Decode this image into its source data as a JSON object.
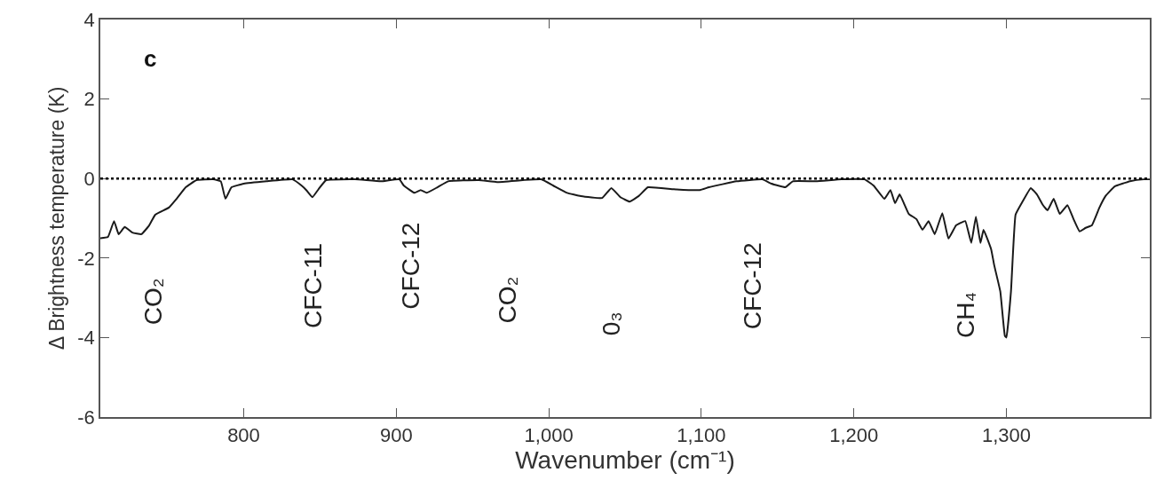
{
  "chart_data": {
    "type": "line",
    "xlabel": "Wavenumber (cm⁻¹)",
    "ylabel": "Δ Brightness temperature (K)",
    "x": [
      706,
      711,
      715,
      718,
      722,
      727,
      733,
      738,
      742,
      751,
      756,
      762,
      769,
      780,
      785,
      788,
      792,
      800,
      815,
      832,
      838,
      841,
      845,
      849,
      854,
      873,
      890,
      902,
      905,
      912,
      916,
      920,
      927,
      934,
      954,
      966,
      983,
      995,
      1003,
      1012,
      1021,
      1035,
      1041,
      1047,
      1053,
      1059,
      1065,
      1082,
      1099,
      1105,
      1123,
      1140,
      1146,
      1155,
      1160,
      1175,
      1192,
      1207,
      1213,
      1220,
      1224,
      1227,
      1230,
      1236,
      1241,
      1245,
      1249,
      1253,
      1258,
      1262,
      1267,
      1273,
      1277,
      1280,
      1283,
      1285,
      1290,
      1292,
      1296,
      1299,
      1300,
      1303,
      1306,
      1310,
      1316,
      1320,
      1324,
      1327,
      1331,
      1335,
      1340,
      1344,
      1348,
      1352,
      1356,
      1361,
      1365,
      1371,
      1381,
      1390,
      1394
    ],
    "series": [
      {
        "color": "#1a1a1a",
        "values": [
          -1.5,
          -1.47,
          -1.07,
          -1.4,
          -1.22,
          -1.36,
          -1.4,
          -1.18,
          -0.91,
          -0.73,
          -0.51,
          -0.22,
          -0.04,
          -0.02,
          -0.07,
          -0.51,
          -0.22,
          -0.13,
          -0.07,
          -0.02,
          -0.18,
          -0.29,
          -0.47,
          -0.27,
          -0.04,
          -0.02,
          -0.07,
          -0.02,
          -0.18,
          -0.36,
          -0.29,
          -0.36,
          -0.22,
          -0.07,
          -0.04,
          -0.09,
          -0.04,
          -0.02,
          -0.18,
          -0.36,
          -0.44,
          -0.49,
          -0.24,
          -0.47,
          -0.58,
          -0.44,
          -0.22,
          -0.27,
          -0.29,
          -0.22,
          -0.07,
          -0.02,
          -0.13,
          -0.22,
          -0.07,
          -0.07,
          -0.02,
          -0.02,
          -0.18,
          -0.51,
          -0.29,
          -0.62,
          -0.4,
          -0.89,
          -1.02,
          -1.29,
          -1.07,
          -1.4,
          -0.87,
          -1.51,
          -1.18,
          -1.07,
          -1.62,
          -0.96,
          -1.62,
          -1.29,
          -1.78,
          -2.18,
          -2.84,
          -3.96,
          -4.0,
          -2.84,
          -0.91,
          -0.62,
          -0.24,
          -0.4,
          -0.67,
          -0.8,
          -0.51,
          -0.89,
          -0.67,
          -1.02,
          -1.33,
          -1.24,
          -1.18,
          -0.73,
          -0.44,
          -0.2,
          -0.07,
          -0.02,
          -0.02
        ]
      }
    ],
    "xlim": [
      706,
      1394
    ],
    "xticks": [
      800,
      900,
      {
        "value": 1000,
        "label": "1,000"
      },
      {
        "value": 1100,
        "label": "1,100"
      },
      {
        "value": 1200,
        "label": "1,200"
      },
      {
        "value": 1300,
        "label": "1,300"
      }
    ],
    "ylim": [
      -6,
      4
    ],
    "yticks": [
      -6,
      -4,
      -2,
      0,
      2,
      4
    ],
    "ref_lines": [
      {
        "axis": "y",
        "value": 0,
        "line_style": "dotted",
        "color": "#000000"
      }
    ],
    "annotations": [
      "c",
      "CO₂",
      "CFC-11",
      "CFC-12",
      "CO₂",
      "0₃",
      "CFC-12",
      "CH₄"
    ],
    "marker": "none",
    "line_style": "solid"
  }
}
